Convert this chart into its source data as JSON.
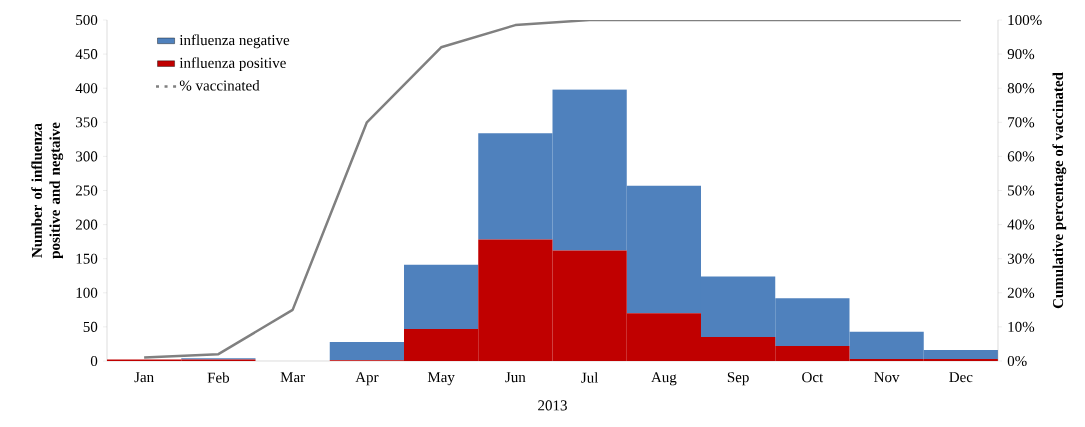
{
  "chart_data": {
    "type": "bar",
    "stacked": true,
    "categories": [
      "Jan",
      "Feb",
      "Mar",
      "Apr",
      "May",
      "Jun",
      "Jul",
      "Aug",
      "Sep",
      "Oct",
      "Nov",
      "Dec"
    ],
    "xlabel": "2013",
    "ylabel": "Number of influenza positive and negtaive",
    "y2label": "Cumulative percentage of vaccinated",
    "series": [
      {
        "name": "influenza positive",
        "color": "#c00000",
        "values": [
          2,
          2,
          0,
          1,
          47,
          178,
          162,
          70,
          35,
          22,
          3,
          3
        ]
      },
      {
        "name": "influenza negative",
        "color": "#4f81bd",
        "values": [
          0,
          2,
          0,
          27,
          94,
          156,
          236,
          187,
          89,
          70,
          40,
          13
        ]
      },
      {
        "name": "% vaccinated",
        "type": "line",
        "axis": "y2",
        "color": "#808080",
        "values": [
          1,
          2,
          15,
          70,
          92,
          98.5,
          100,
          100,
          100,
          100,
          100,
          100
        ]
      }
    ],
    "ylim": [
      0,
      500
    ],
    "yticks": [
      0,
      50,
      100,
      150,
      200,
      250,
      300,
      350,
      400,
      450,
      500
    ],
    "y2lim": [
      0,
      100
    ],
    "y2ticks": [
      {
        "value": 0,
        "label": "0%"
      },
      {
        "value": 10,
        "label": "10%"
      },
      {
        "value": 20,
        "label": "20%"
      },
      {
        "value": 30,
        "label": "30%"
      },
      {
        "value": 40,
        "label": "40%"
      },
      {
        "value": 50,
        "label": "50%"
      },
      {
        "value": 60,
        "label": "60%"
      },
      {
        "value": 70,
        "label": "70%"
      },
      {
        "value": 80,
        "label": "80%"
      },
      {
        "value": 90,
        "label": "90%"
      },
      {
        "value": 100,
        "label": "100%"
      }
    ],
    "legend": "top left",
    "grid": false,
    "marker": "none",
    "line_style": "solid"
  }
}
